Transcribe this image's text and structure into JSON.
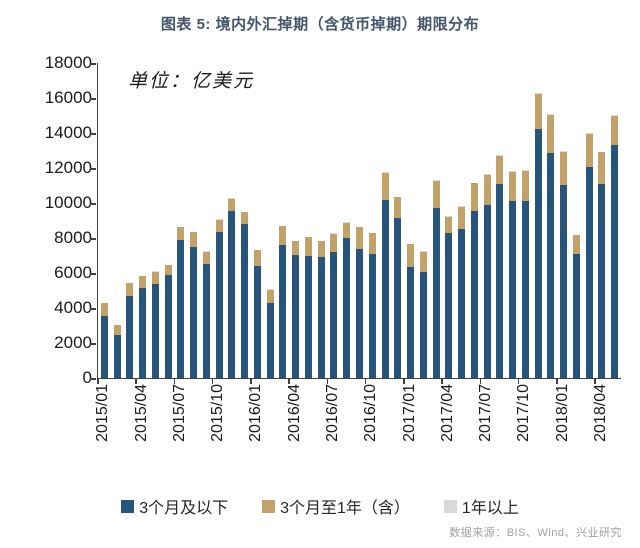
{
  "title": "图表 5: 境内外汇掉期（含货币掉期）期限分布",
  "unit_label": "单位：亿美元",
  "source": "数据来源：BIS、Wind、兴业研究",
  "colors": {
    "under_3m": "#27547B",
    "m3_to_1y": "#C2A269",
    "over_1y": "#D9D9D9",
    "title": "#44546A",
    "axis": "#404040"
  },
  "chart_data": {
    "type": "bar",
    "stacked": true,
    "title": "图表 5: 境内外汇掉期（含货币掉期）期限分布",
    "unit": "亿美元",
    "xlabel": "",
    "ylabel": "亿美元",
    "ylim": [
      0,
      18000
    ],
    "ytick_step": 2000,
    "y_ticks": [
      0,
      2000,
      4000,
      6000,
      8000,
      10000,
      12000,
      14000,
      16000,
      18000
    ],
    "grid": false,
    "legend_position": "bottom",
    "x_label_every": 3,
    "x_shown_tick_labels": [
      "2015/01",
      "2015/04",
      "2015/07",
      "2015/10",
      "2016/01",
      "2016/04",
      "2016/07",
      "2016/10",
      "2017/01",
      "2017/04",
      "2017/07",
      "2017/10",
      "2018/01",
      "2018/04"
    ],
    "categories": [
      "2015/01",
      "2015/02",
      "2015/03",
      "2015/04",
      "2015/05",
      "2015/06",
      "2015/07",
      "2015/08",
      "2015/09",
      "2015/10",
      "2015/11",
      "2015/12",
      "2016/01",
      "2016/02",
      "2016/03",
      "2016/04",
      "2016/05",
      "2016/06",
      "2016/07",
      "2016/08",
      "2016/09",
      "2016/10",
      "2016/11",
      "2016/12",
      "2017/01",
      "2017/02",
      "2017/03",
      "2017/04",
      "2017/05",
      "2017/06",
      "2017/07",
      "2017/08",
      "2017/09",
      "2017/10",
      "2017/11",
      "2017/12",
      "2018/01",
      "2018/02",
      "2018/03",
      "2018/04",
      "2018/05"
    ],
    "series": [
      {
        "name": "3个月及以下",
        "color": "#27547B",
        "values": [
          3540,
          2460,
          4690,
          5120,
          5390,
          5890,
          7890,
          7500,
          6500,
          8360,
          9540,
          8780,
          6420,
          4290,
          7580,
          7050,
          7000,
          6920,
          7180,
          7990,
          7360,
          7070,
          10180,
          9130,
          6360,
          6080,
          9700,
          8300,
          8500,
          9540,
          9900,
          11070,
          10130,
          10110,
          14210,
          12880,
          11030,
          7070,
          12080,
          11070,
          13310
        ]
      },
      {
        "name": "3个月至1年（含）",
        "color": "#C2A269",
        "values": [
          750,
          570,
          720,
          710,
          680,
          570,
          720,
          830,
          720,
          670,
          690,
          690,
          890,
          760,
          1080,
          760,
          1040,
          890,
          1070,
          890,
          1250,
          1190,
          1540,
          1200,
          1290,
          1130,
          1550,
          900,
          1290,
          1580,
          1700,
          1620,
          1660,
          1740,
          2000,
          2150,
          1900,
          1100,
          1860,
          1820,
          1660
        ]
      },
      {
        "name": "1年以上",
        "color": "#D9D9D9",
        "values": [
          20,
          20,
          20,
          20,
          20,
          20,
          30,
          30,
          30,
          30,
          30,
          30,
          30,
          20,
          30,
          30,
          30,
          30,
          30,
          30,
          30,
          30,
          40,
          40,
          30,
          30,
          40,
          30,
          30,
          40,
          40,
          40,
          40,
          40,
          50,
          50,
          40,
          30,
          40,
          40,
          40
        ]
      }
    ]
  },
  "legend": {
    "items": [
      "3个月及以下",
      "3个月至1年（含）",
      "1年以上"
    ]
  }
}
